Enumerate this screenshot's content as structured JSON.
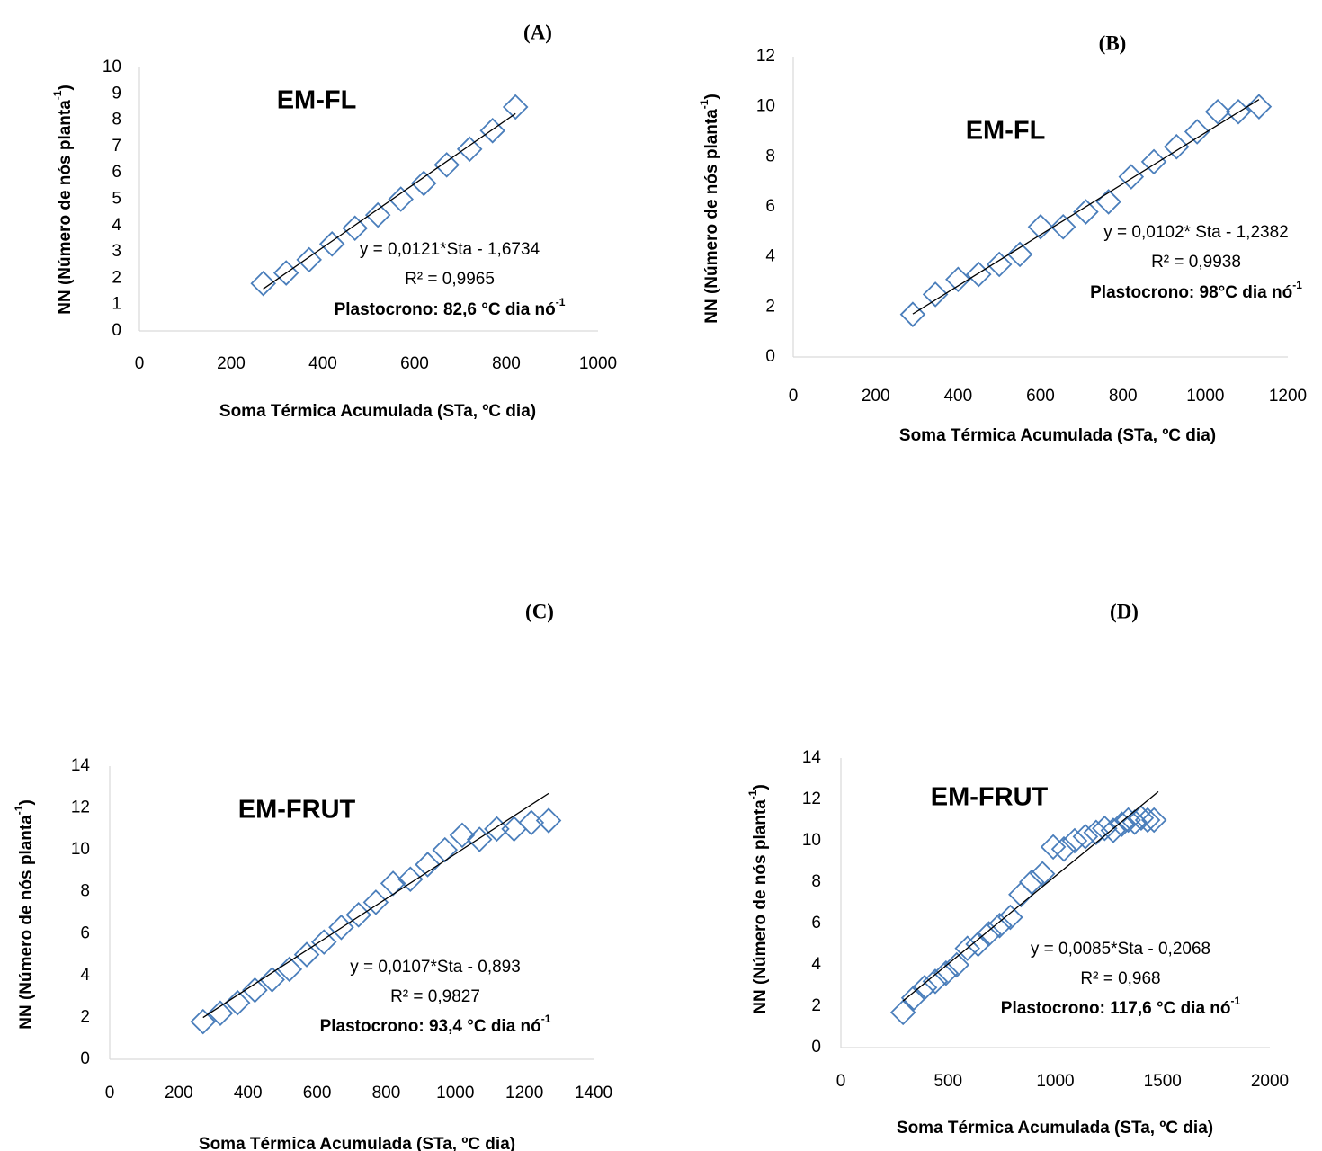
{
  "chart_data": [
    {
      "panel_label": "(A)",
      "type": "scatter",
      "title": "EM-FL",
      "xlabel": "Soma Térmica Acumulada (STa, ºC dia)",
      "ylabel": "NN (Número de nós planta",
      "ylabel_sup": "-1",
      "ylabel_end": ")",
      "xlim": [
        0,
        1000
      ],
      "ylim": [
        0,
        10
      ],
      "xticks": [
        0,
        200,
        400,
        600,
        800,
        1000
      ],
      "yticks": [
        0,
        1,
        2,
        3,
        4,
        5,
        6,
        7,
        8,
        9,
        10
      ],
      "grid": false,
      "marker_color": "#4a7ebb",
      "x": [
        270,
        320,
        370,
        420,
        470,
        520,
        570,
        620,
        670,
        720,
        770,
        820
      ],
      "y": [
        1.8,
        2.2,
        2.7,
        3.3,
        3.9,
        4.4,
        5.0,
        5.6,
        6.3,
        6.9,
        7.6,
        8.5
      ],
      "trendline": {
        "slope": 0.0121,
        "intercept": -1.6734,
        "x_range": [
          270,
          820
        ]
      },
      "equation": "y = 0,0121*Sta - 1,6734",
      "r2": "R² = 0,9965",
      "plastocrono": "Plastocrono: 82,6 °C dia nó",
      "plastocrono_sup": "-1"
    },
    {
      "panel_label": "(B)",
      "type": "scatter",
      "title": "EM-FL",
      "xlabel": "Soma Térmica Acumulada (STa, ºC dia)",
      "ylabel": "NN (Número de nós planta",
      "ylabel_sup": "-1",
      "ylabel_end": ")",
      "xlim": [
        0,
        1200
      ],
      "ylim": [
        0,
        12
      ],
      "xticks": [
        0,
        200,
        400,
        600,
        800,
        1000,
        1200
      ],
      "yticks": [
        0,
        2,
        4,
        6,
        8,
        10,
        12
      ],
      "grid": false,
      "marker_color": "#4a7ebb",
      "x": [
        290,
        345,
        400,
        450,
        500,
        550,
        600,
        655,
        710,
        765,
        820,
        875,
        930,
        980,
        1030,
        1080,
        1130
      ],
      "y": [
        1.7,
        2.5,
        3.1,
        3.3,
        3.7,
        4.1,
        5.2,
        5.2,
        5.8,
        6.2,
        7.2,
        7.8,
        8.4,
        9.0,
        9.8,
        9.8,
        10.0
      ],
      "trendline": {
        "slope": 0.0102,
        "intercept": -1.2382,
        "x_range": [
          290,
          1130
        ]
      },
      "equation": "y = 0,0102* Sta - 1,2382",
      "r2": "R² = 0,9938",
      "plastocrono": "Plastocrono: 98°C dia nó",
      "plastocrono_sup": "-1"
    },
    {
      "panel_label": "(C)",
      "type": "scatter",
      "title": "EM-FRUT",
      "xlabel": "Soma Térmica Acumulada (STa, ºC dia)",
      "ylabel": "NN (Número de nós planta",
      "ylabel_sup": "-1",
      "ylabel_end": ")",
      "xlim": [
        0,
        1400
      ],
      "ylim": [
        0,
        14
      ],
      "xticks": [
        0,
        200,
        400,
        600,
        800,
        1000,
        1200,
        1400
      ],
      "yticks": [
        0,
        2,
        4,
        6,
        8,
        10,
        12,
        14
      ],
      "grid": false,
      "marker_color": "#4a7ebb",
      "x": [
        270,
        320,
        370,
        420,
        470,
        520,
        570,
        620,
        670,
        720,
        770,
        820,
        870,
        920,
        970,
        1020,
        1070,
        1120,
        1170,
        1220,
        1270
      ],
      "y": [
        1.8,
        2.2,
        2.7,
        3.3,
        3.8,
        4.3,
        5.0,
        5.6,
        6.3,
        6.9,
        7.5,
        8.4,
        8.6,
        9.3,
        10.0,
        10.7,
        10.5,
        11.0,
        11.0,
        11.3,
        11.4
      ],
      "trendline": {
        "slope": 0.0107,
        "intercept": -0.893,
        "x_range": [
          270,
          1270
        ]
      },
      "equation": "y = 0,0107*Sta - 0,893",
      "r2": "R² = 0,9827",
      "plastocrono": "Plastocrono: 93,4 °C dia nó",
      "plastocrono_sup": "-1"
    },
    {
      "panel_label": "(D)",
      "type": "scatter",
      "title": "EM-FRUT",
      "xlabel": "Soma Térmica Acumulada (STa, ºC dia)",
      "ylabel": "NN (Número de nós planta",
      "ylabel_sup": "-1",
      "ylabel_end": ")",
      "xlim": [
        0,
        2000
      ],
      "ylim": [
        0,
        14
      ],
      "xticks": [
        0,
        500,
        1000,
        1500,
        2000
      ],
      "yticks": [
        0,
        2,
        4,
        6,
        8,
        10,
        12,
        14
      ],
      "grid": false,
      "marker_color": "#4a7ebb",
      "x": [
        290,
        340,
        390,
        440,
        490,
        540,
        590,
        640,
        690,
        740,
        790,
        840,
        890,
        940,
        990,
        1040,
        1090,
        1140,
        1190,
        1230,
        1270,
        1310,
        1340,
        1370,
        1400,
        1430,
        1460
      ],
      "y": [
        1.7,
        2.4,
        2.9,
        3.2,
        3.6,
        4.0,
        4.8,
        5.0,
        5.5,
        5.9,
        6.3,
        7.4,
        8.0,
        8.4,
        9.7,
        9.6,
        10.0,
        10.2,
        10.4,
        10.6,
        10.5,
        10.8,
        11.0,
        10.9,
        11.1,
        11.0,
        11.0
      ],
      "trendline": {
        "slope": 0.0085,
        "intercept": -0.2068,
        "x_range": [
          290,
          1480
        ]
      },
      "equation": "y = 0,0085*Sta - 0,2068",
      "r2": "R² = 0,968",
      "plastocrono": "Plastocrono: 117,6 °C dia nó",
      "plastocrono_sup": "-1"
    }
  ]
}
